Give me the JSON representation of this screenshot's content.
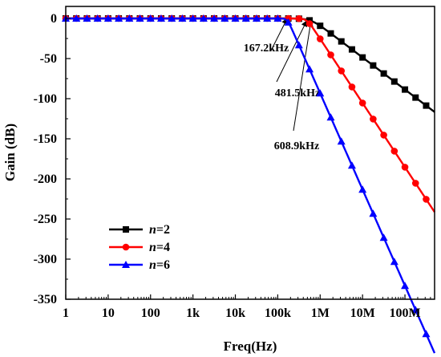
{
  "chart_data": {
    "type": "line",
    "xlabel": "Freq(Hz)",
    "ylabel": "Gain (dB)",
    "x_scale": "log",
    "xlim": [
      1,
      500000000
    ],
    "ylim": [
      -350,
      15
    ],
    "x_ticks": [
      {
        "value": 1,
        "label": "1"
      },
      {
        "value": 10,
        "label": "10"
      },
      {
        "value": 100,
        "label": "100"
      },
      {
        "value": 1000,
        "label": "1k"
      },
      {
        "value": 10000,
        "label": "10k"
      },
      {
        "value": 100000,
        "label": "100k"
      },
      {
        "value": 1000000,
        "label": "1M"
      },
      {
        "value": 10000000,
        "label": "10M"
      },
      {
        "value": 100000000,
        "label": "100M"
      }
    ],
    "y_ticks": [
      {
        "value": 0,
        "label": "0"
      },
      {
        "value": -50,
        "label": "-50"
      },
      {
        "value": -100,
        "label": "-100"
      },
      {
        "value": -150,
        "label": "-150"
      },
      {
        "value": -200,
        "label": "-200"
      },
      {
        "value": -250,
        "label": "-250"
      },
      {
        "value": -300,
        "label": "-300"
      },
      {
        "value": -350,
        "label": "-350"
      }
    ],
    "grid": false,
    "legend_position": "bottom-left",
    "series": [
      {
        "name": "n=2",
        "name_italic": "n",
        "name_rest": "=2",
        "color": "#000000",
        "marker": "square",
        "order": 2,
        "fc": 608900
      },
      {
        "name": "n=4",
        "name_italic": "n",
        "name_rest": "=4",
        "color": "#ff0000",
        "marker": "circle",
        "order": 4,
        "fc": 481500
      },
      {
        "name": "n=6",
        "name_italic": "n",
        "name_rest": "=6",
        "color": "#0000ff",
        "marker": "triangle",
        "order": 6,
        "fc": 167200
      }
    ],
    "annotations": [
      {
        "text": "167.2kHz",
        "x": 167200,
        "y": 0
      },
      {
        "text": "481.5kHz",
        "x": 481500,
        "y": -3
      },
      {
        "text": "608.9kHz",
        "x": 608900,
        "y": -3
      }
    ]
  }
}
